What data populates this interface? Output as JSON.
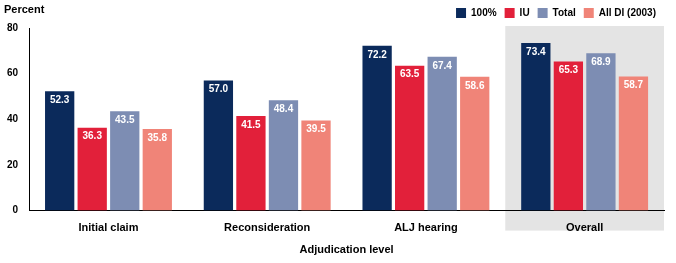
{
  "chart_data": {
    "type": "bar",
    "y_label": "Percent",
    "x_label": "Adjudication level",
    "categories": [
      "Initial claim",
      "Reconsideration",
      "ALJ hearing",
      "Overall"
    ],
    "series": [
      {
        "name": "100%",
        "color": "#0b2a5b",
        "values": [
          52.3,
          57.0,
          72.2,
          73.4
        ],
        "value_labels": [
          "52.3",
          "57.0",
          "72.2",
          "73.4"
        ]
      },
      {
        "name": "IU",
        "color": "#e2203a",
        "values": [
          36.3,
          41.5,
          63.5,
          65.3
        ]
      },
      {
        "name": "Total",
        "color": "#7d8db3",
        "values": [
          43.5,
          48.4,
          67.4,
          68.9
        ]
      },
      {
        "name": "All DI (2003)",
        "color": "#f08478",
        "values": [
          35.8,
          39.5,
          58.6,
          58.7
        ]
      }
    ],
    "ylim": [
      0,
      80
    ],
    "yticks": [
      0,
      20,
      40,
      60,
      80
    ],
    "grid": false,
    "legend": "top-right",
    "data_labels": true
  }
}
